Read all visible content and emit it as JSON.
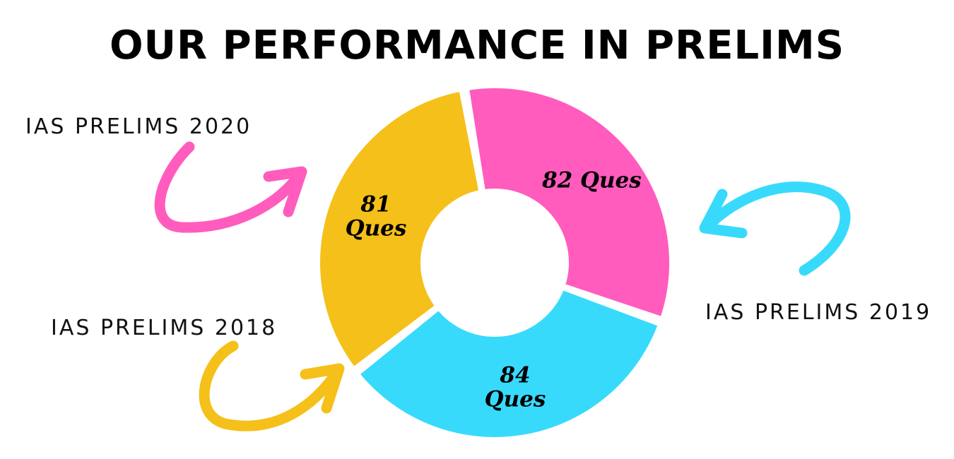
{
  "title": "OUR PERFORMANCE IN PRELIMS",
  "chart_data": {
    "type": "pie",
    "variant": "donut",
    "title": "OUR PERFORMANCE IN PRELIMS",
    "categories": [
      "IAS PRELIMS 2020",
      "IAS PRELIMS 2019",
      "IAS PRELIMS 2018"
    ],
    "values": [
      82,
      84,
      81
    ],
    "unit": "Ques",
    "value_labels": [
      "82 Ques",
      "84 Ques",
      "81 Ques"
    ],
    "colors": [
      "#ff5cbe",
      "#38dafc",
      "#f5c019"
    ],
    "legend": "callout labels with curved arrows"
  }
}
